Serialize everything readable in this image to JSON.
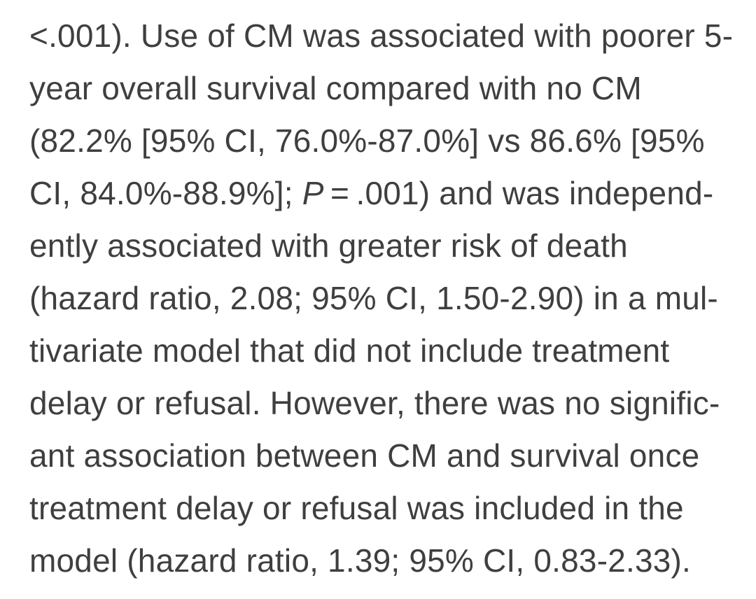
{
  "page": {
    "background_color": "#ffffff",
    "text_color": "#3f3f3f"
  },
  "document": {
    "kind": "ebook-text-excerpt",
    "lines": [
      {
        "segments": [
          {
            "text": "<.001). Use of CM was associated with poorer 5-"
          }
        ]
      },
      {
        "segments": [
          {
            "text": "year overall survival compared with no CM"
          }
        ]
      },
      {
        "segments": [
          {
            "text": "(82.2% [95% CI, 76.0%-87.0%] vs 86.6% [95%"
          }
        ]
      },
      {
        "segments": [
          {
            "text": "CI, 84.0%-88.9%]; "
          },
          {
            "text": "P",
            "italic": true
          },
          {
            "text": " = .001) and was independ-"
          }
        ]
      },
      {
        "segments": [
          {
            "text": "ently associated with greater risk of death"
          }
        ]
      },
      {
        "segments": [
          {
            "text": "(hazard ratio, 2.08; 95% CI, 1.50-2.90) in a mul-"
          }
        ]
      },
      {
        "segments": [
          {
            "text": "tivariate model that did not include treatment"
          }
        ]
      },
      {
        "segments": [
          {
            "text": "delay or refusal. However, there was no signific-"
          }
        ]
      },
      {
        "segments": [
          {
            "text": "ant association between CM and survival once"
          }
        ]
      },
      {
        "segments": [
          {
            "text": "treatment delay or refusal was included in the"
          }
        ]
      },
      {
        "segments": [
          {
            "text": "model (hazard ratio, 1.39; 95% CI, 0.83-2.33)."
          }
        ]
      }
    ]
  }
}
